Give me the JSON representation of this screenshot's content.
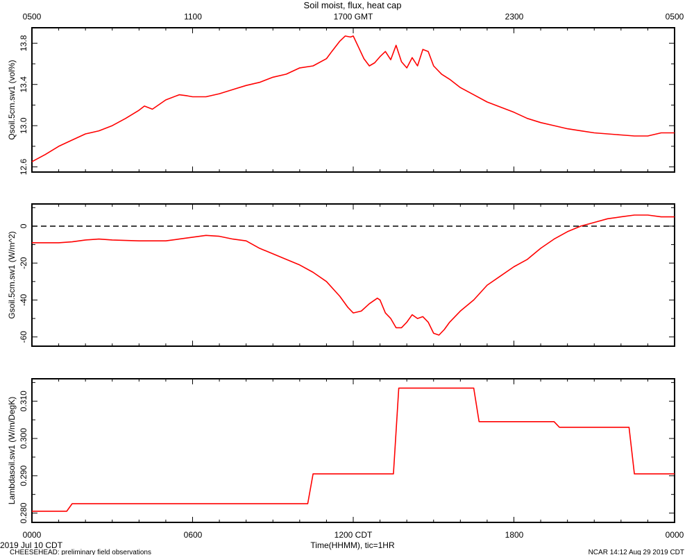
{
  "title": "Soil moist, flux, heat cap",
  "top_axis_ticks": [
    "0500",
    "1100",
    "1700 GMT",
    "2300",
    "0500"
  ],
  "bottom_axis_ticks": [
    "0000",
    "0600",
    "1200 CDT",
    "1800",
    "0000"
  ],
  "xlabel": "Time(HHMM), tic=1HR",
  "date_label": "2019 Jul 10 CDT",
  "footer_left": "CHEESEHEAD: preliminary field observations",
  "footer_right": "NCAR 14:12 Aug 29 2019 CDT",
  "colors": {
    "series": "#ff0000",
    "axis": "#000000",
    "zero_line": "#000000"
  },
  "chart_data": [
    {
      "type": "line",
      "ylabel": "Qsoil.5cm.sw1 (vol%)",
      "xlim": [
        0,
        24
      ],
      "ylim": [
        12.55,
        13.95
      ],
      "yticks": [
        12.6,
        13.0,
        13.4,
        13.8
      ],
      "ytick_labels": [
        "12.6",
        "13.0",
        "13.4",
        "13.8"
      ],
      "x": [
        0,
        0.5,
        1,
        1.5,
        2,
        2.5,
        3,
        3.5,
        4,
        4.2,
        4.5,
        5,
        5.5,
        5.8,
        6,
        6.3,
        6.5,
        7,
        7.5,
        8,
        8.5,
        9,
        9.5,
        10,
        10.5,
        11,
        11.2,
        11.5,
        11.7,
        11.9,
        12,
        12.2,
        12.4,
        12.6,
        12.8,
        13,
        13.2,
        13.4,
        13.6,
        13.8,
        14,
        14.2,
        14.4,
        14.6,
        14.8,
        15,
        15.3,
        15.6,
        16,
        16.5,
        17,
        17.5,
        18,
        18.5,
        19,
        19.5,
        20,
        20.5,
        21,
        21.5,
        22,
        22.5,
        23,
        23.5,
        24
      ],
      "y": [
        12.65,
        12.72,
        12.8,
        12.86,
        12.92,
        12.95,
        13.0,
        13.07,
        13.15,
        13.19,
        13.16,
        13.25,
        13.3,
        13.29,
        13.28,
        13.28,
        13.28,
        13.31,
        13.35,
        13.39,
        13.42,
        13.47,
        13.5,
        13.56,
        13.58,
        13.65,
        13.72,
        13.82,
        13.87,
        13.86,
        13.87,
        13.76,
        13.65,
        13.58,
        13.61,
        13.67,
        13.72,
        13.64,
        13.78,
        13.62,
        13.56,
        13.66,
        13.58,
        13.74,
        13.72,
        13.58,
        13.5,
        13.45,
        13.37,
        13.3,
        13.23,
        13.18,
        13.13,
        13.07,
        13.03,
        13.0,
        12.97,
        12.95,
        12.93,
        12.92,
        12.91,
        12.9,
        12.9,
        12.93,
        12.93
      ],
      "color": "#ff0000"
    },
    {
      "type": "line",
      "ylabel": "Gsoil.5cm.sw1 (W/m^2)",
      "xlim": [
        0,
        24
      ],
      "ylim": [
        -65,
        12
      ],
      "yticks": [
        -60,
        -40,
        -20,
        0
      ],
      "ytick_labels": [
        "-60",
        "-40",
        "-20",
        "0"
      ],
      "reference_line": 0,
      "x": [
        0,
        0.5,
        1,
        1.5,
        2,
        2.5,
        3,
        4,
        5,
        5.5,
        6,
        6.5,
        7,
        7.5,
        8,
        8.5,
        9,
        9.5,
        10,
        10.5,
        11,
        11.5,
        11.8,
        12,
        12.3,
        12.6,
        12.9,
        13,
        13.2,
        13.4,
        13.6,
        13.8,
        14,
        14.2,
        14.4,
        14.6,
        14.8,
        15,
        15.2,
        15.4,
        15.6,
        16,
        16.5,
        17,
        17.5,
        18,
        18.5,
        19,
        19.5,
        20,
        20.5,
        21,
        21.5,
        22,
        22.5,
        23,
        23.5,
        24
      ],
      "y": [
        -9,
        -9,
        -9,
        -8.5,
        -7.5,
        -7,
        -7.5,
        -8,
        -8,
        -7,
        -6,
        -5,
        -5.5,
        -7,
        -8,
        -12,
        -15,
        -18,
        -21,
        -25,
        -30,
        -38,
        -44,
        -47,
        -46,
        -42,
        -39,
        -40,
        -47,
        -50,
        -55,
        -55,
        -52,
        -48,
        -50,
        -49,
        -52,
        -58,
        -59,
        -56,
        -52,
        -46,
        -40,
        -32,
        -27,
        -22,
        -18,
        -12,
        -7,
        -3,
        0,
        2,
        4,
        5,
        6,
        6,
        5,
        5
      ],
      "color": "#ff0000"
    },
    {
      "type": "line",
      "ylabel": "Lambdasoil.sw1 (W/m/DegK)",
      "xlim": [
        0,
        24
      ],
      "ylim": [
        0.2775,
        0.316
      ],
      "yticks": [
        0.28,
        0.29,
        0.3,
        0.31
      ],
      "ytick_labels": [
        "0.280",
        "0.290",
        "0.300",
        "0.310"
      ],
      "step": true,
      "x": [
        0,
        1.3,
        1.5,
        10.3,
        10.5,
        13.5,
        13.7,
        16.5,
        16.7,
        19.5,
        19.7,
        22.3,
        22.5,
        24
      ],
      "y": [
        0.2805,
        0.2805,
        0.2825,
        0.2825,
        0.2905,
        0.2905,
        0.3135,
        0.3135,
        0.3045,
        0.3045,
        0.303,
        0.303,
        0.2905,
        0.2905
      ],
      "color": "#ff0000"
    }
  ]
}
